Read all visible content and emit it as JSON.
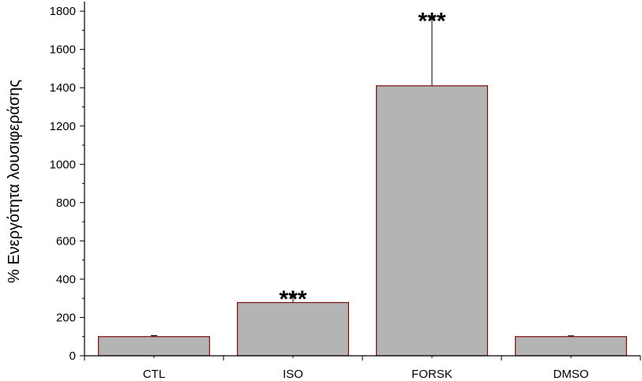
{
  "chart_data": {
    "type": "bar",
    "categories": [
      "CTL",
      "ISO",
      "FORSK",
      "DMSO"
    ],
    "values": [
      100,
      278,
      1410,
      100
    ],
    "error_upper": [
      5,
      35,
      355,
      4
    ],
    "annotations": [
      "",
      "***",
      "***",
      ""
    ],
    "title": "",
    "xlabel": "",
    "ylabel": "% Ενεργότητα λουσιφεράσης",
    "ylim": [
      0,
      1850
    ],
    "yticks": [
      0,
      200,
      400,
      600,
      800,
      1000,
      1200,
      1400,
      1600,
      1800
    ],
    "grid": false,
    "colors": {
      "bar_fill": "#b4b4b4",
      "bar_stroke": "#7a1010",
      "axis": "#000000",
      "error_bar": "#000000"
    }
  }
}
